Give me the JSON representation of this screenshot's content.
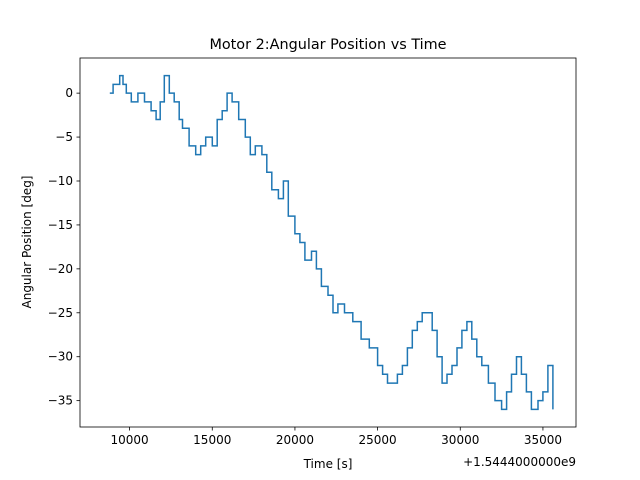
{
  "chart_data": {
    "type": "line",
    "title": "Motor 2:Angular Position vs Time",
    "xlabel": "Time [s]",
    "ylabel": "Angular Position [deg]",
    "x_offset_label": "+1.5444000000e9",
    "xlim": [
      7000,
      37000
    ],
    "ylim": [
      -38,
      4
    ],
    "x_ticks": [
      10000,
      15000,
      20000,
      25000,
      30000,
      35000
    ],
    "x_tick_labels": [
      "10000",
      "15000",
      "20000",
      "25000",
      "30000",
      "35000"
    ],
    "y_ticks": [
      0,
      -5,
      -10,
      -15,
      -20,
      -25,
      -30,
      -35
    ],
    "y_tick_labels": [
      "0",
      "−5",
      "−10",
      "−15",
      "−20",
      "−25",
      "−30",
      "−35"
    ],
    "grid": false,
    "legend": "none",
    "series": [
      {
        "color": "#1f77b4",
        "x": [
          8800,
          9000,
          9200,
          9400,
          9600,
          9800,
          10100,
          10500,
          10900,
          11300,
          11600,
          11850,
          12100,
          12400,
          12700,
          13000,
          13200,
          13600,
          14000,
          14300,
          14600,
          15000,
          15300,
          15600,
          15900,
          16200,
          16600,
          17000,
          17300,
          17600,
          18000,
          18300,
          18600,
          19000,
          19300,
          19600,
          20000,
          20300,
          20600,
          21000,
          21300,
          21600,
          22000,
          22300,
          22600,
          23000,
          23500,
          24000,
          24500,
          25000,
          25300,
          25600,
          25900,
          26200,
          26500,
          26800,
          27100,
          27400,
          27700,
          28000,
          28300,
          28600,
          28900,
          29200,
          29500,
          29800,
          30100,
          30400,
          30700,
          31000,
          31300,
          31700,
          32100,
          32500,
          32800,
          33100,
          33400,
          33700,
          34000,
          34300,
          34700,
          35000,
          35300,
          35600
        ],
        "y": [
          0,
          1,
          1,
          2,
          1,
          0,
          -1,
          0,
          -1,
          -2,
          -3,
          -1,
          2,
          0,
          -1,
          -3,
          -4,
          -6,
          -7,
          -6,
          -5,
          -6,
          -3,
          -2,
          0,
          -1,
          -3,
          -5,
          -7,
          -6,
          -7,
          -9,
          -11,
          -12,
          -10,
          -14,
          -16,
          -17,
          -19,
          -18,
          -20,
          -22,
          -23,
          -25,
          -24,
          -25,
          -26,
          -28,
          -29,
          -31,
          -32,
          -33,
          -33,
          -32,
          -31,
          -29,
          -27,
          -26,
          -25,
          -25,
          -27,
          -30,
          -33,
          -32,
          -31,
          -29,
          -27,
          -26,
          -28,
          -30,
          -31,
          -33,
          -35,
          -36,
          -34,
          -32,
          -30,
          -32,
          -34,
          -36,
          -35,
          -34,
          -31,
          -36
        ]
      }
    ]
  }
}
